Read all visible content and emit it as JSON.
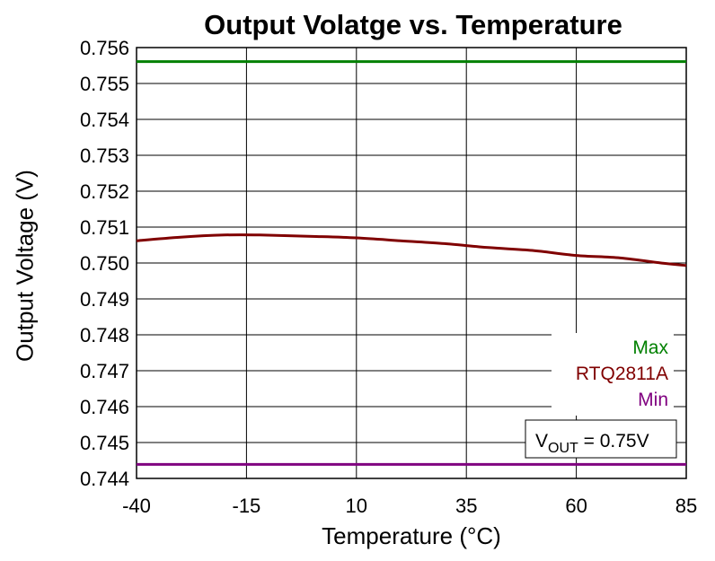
{
  "chart_data": {
    "type": "line",
    "title": "Output Volatge vs. Temperature",
    "xlabel": "Temperature (°C)",
    "ylabel": "Output Voltage (V)",
    "x_ticks": [
      "-40",
      "-15",
      "10",
      "35",
      "60",
      "85"
    ],
    "y_ticks": [
      "0.756",
      "0.755",
      "0.754",
      "0.753",
      "0.752",
      "0.751",
      "0.750",
      "0.749",
      "0.748",
      "0.747",
      "0.746",
      "0.745",
      "0.744"
    ],
    "xlim": [
      -40,
      85
    ],
    "ylim": [
      0.744,
      0.756
    ],
    "grid": true,
    "legend_position": "bottom-right",
    "series": [
      {
        "name": "Max",
        "color": "#008000",
        "x": [
          -40,
          85
        ],
        "y": [
          0.75561,
          0.75561
        ]
      },
      {
        "name": "RTQ2811A",
        "color": "#800000",
        "x": [
          -40,
          -30,
          -20,
          -12,
          0,
          10,
          20,
          30,
          40,
          50,
          60,
          70,
          80,
          85
        ],
        "y": [
          0.75062,
          0.75072,
          0.75078,
          0.75078,
          0.75074,
          0.7507,
          0.75062,
          0.75054,
          0.75043,
          0.75035,
          0.75021,
          0.75014,
          0.74999,
          0.74993
        ]
      },
      {
        "name": "Min",
        "color": "#800080",
        "x": [
          -40,
          85
        ],
        "y": [
          0.74439,
          0.74439
        ]
      }
    ],
    "annotation": {
      "prefix": "V",
      "subscript": "OUT",
      "suffix": " = 0.75V"
    }
  }
}
